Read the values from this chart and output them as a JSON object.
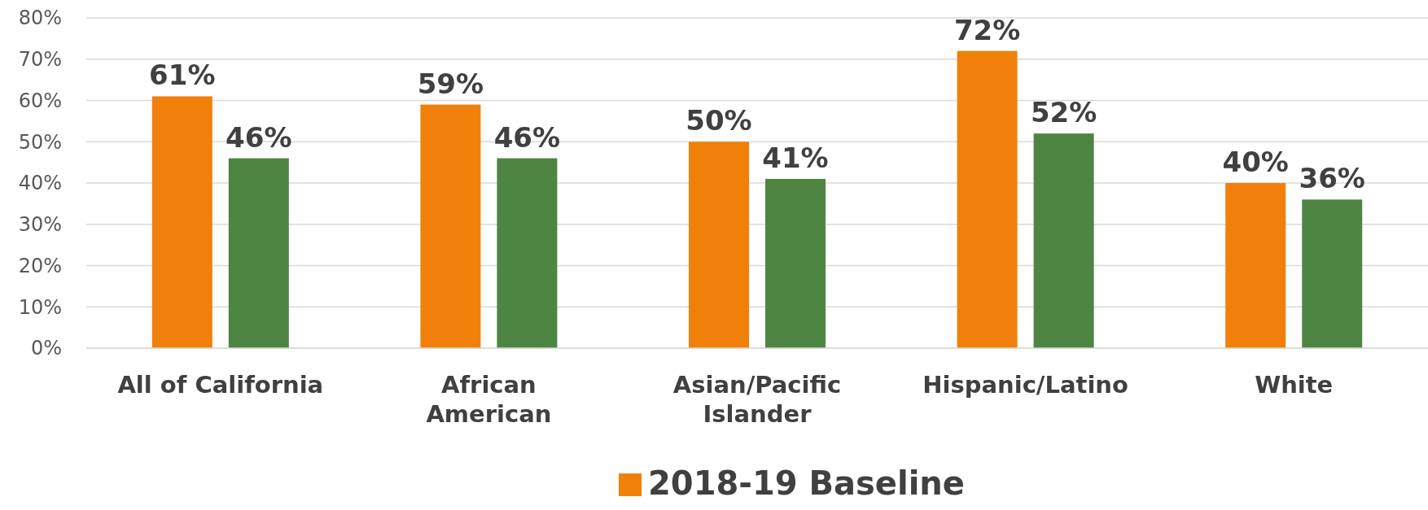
{
  "chart_data": {
    "type": "bar",
    "categories": [
      "All of California",
      "African\nAmerican",
      "Asian/Pacific\nIslander",
      "Hispanic/Latino",
      "White"
    ],
    "series": [
      {
        "name": "2018-19 Baseline",
        "color": "#f0800a",
        "values": [
          61,
          59,
          50,
          72,
          40
        ]
      },
      {
        "color": "#4e8542",
        "values": [
          46,
          46,
          41,
          52,
          36
        ]
      }
    ],
    "ylim": [
      0,
      80
    ],
    "yticks": [
      {
        "value": 0,
        "label": "0%"
      },
      {
        "value": 10,
        "label": "10%"
      },
      {
        "value": 20,
        "label": "20%"
      },
      {
        "value": 30,
        "label": "30%"
      },
      {
        "value": 40,
        "label": "40%"
      },
      {
        "value": 50,
        "label": "50%"
      },
      {
        "value": 60,
        "label": "60%"
      },
      {
        "value": 70,
        "label": "70%"
      },
      {
        "value": 80,
        "label": "80%"
      }
    ],
    "value_labels": [
      [
        "61%",
        "59%",
        "50%",
        "72%",
        "40%"
      ],
      [
        "46%",
        "46%",
        "41%",
        "52%",
        "36%"
      ]
    ],
    "grid": "y",
    "legend": "bottom"
  }
}
